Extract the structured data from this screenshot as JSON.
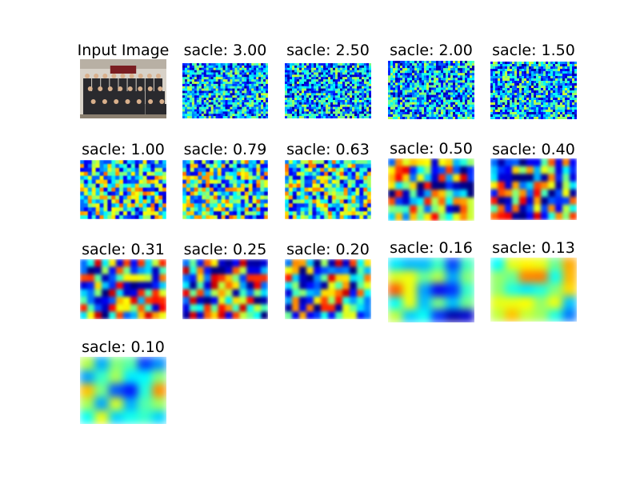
{
  "figure": {
    "panels": [
      {
        "title": "Input Image",
        "type": "photo"
      },
      {
        "title": "sacle: 3.00",
        "type": "heatmap",
        "style": "fine",
        "seed": 11
      },
      {
        "title": "sacle: 2.50",
        "type": "heatmap",
        "style": "fine",
        "seed": 23
      },
      {
        "title": "sacle: 2.00",
        "type": "heatmap",
        "style": "fine",
        "seed": 37
      },
      {
        "title": "sacle: 1.50",
        "type": "heatmap",
        "style": "fine",
        "seed": 41
      },
      {
        "title": "sacle: 1.00",
        "type": "heatmap",
        "style": "mixed",
        "seed": 53
      },
      {
        "title": "sacle: 0.79",
        "type": "heatmap",
        "style": "mixed",
        "seed": 67
      },
      {
        "title": "sacle: 0.63",
        "type": "heatmap",
        "style": "mixed",
        "seed": 71
      },
      {
        "title": "sacle: 0.50",
        "type": "heatmap",
        "style": "coarse",
        "seed": 83
      },
      {
        "title": "sacle: 0.40",
        "type": "heatmap",
        "style": "coarse",
        "seed": 97
      },
      {
        "title": "sacle: 0.31",
        "type": "heatmap",
        "style": "coarse",
        "seed": 101
      },
      {
        "title": "sacle: 0.25",
        "type": "heatmap",
        "style": "coarse",
        "seed": 113
      },
      {
        "title": "sacle: 0.20",
        "type": "heatmap",
        "style": "coarse",
        "seed": 127
      },
      {
        "title": "sacle: 0.16",
        "type": "heatmap",
        "style": "blur",
        "seed": 131
      },
      {
        "title": "sacle: 0.13",
        "type": "heatmap",
        "style": "blur",
        "seed": 139
      },
      {
        "title": "sacle: 0.10",
        "type": "heatmap",
        "style": "blur",
        "seed": 149
      }
    ],
    "colors": {
      "jet": [
        "#00007f",
        "#0000ff",
        "#007fff",
        "#00ffff",
        "#7fff7f",
        "#ffff00",
        "#ff7f00",
        "#ff0000",
        "#7f0000"
      ],
      "photo_bg": "#d8d2c8",
      "photo_banner": "#7a1e22",
      "photo_robe": "#2a2a2e",
      "photo_face": "#d9b08c"
    }
  }
}
